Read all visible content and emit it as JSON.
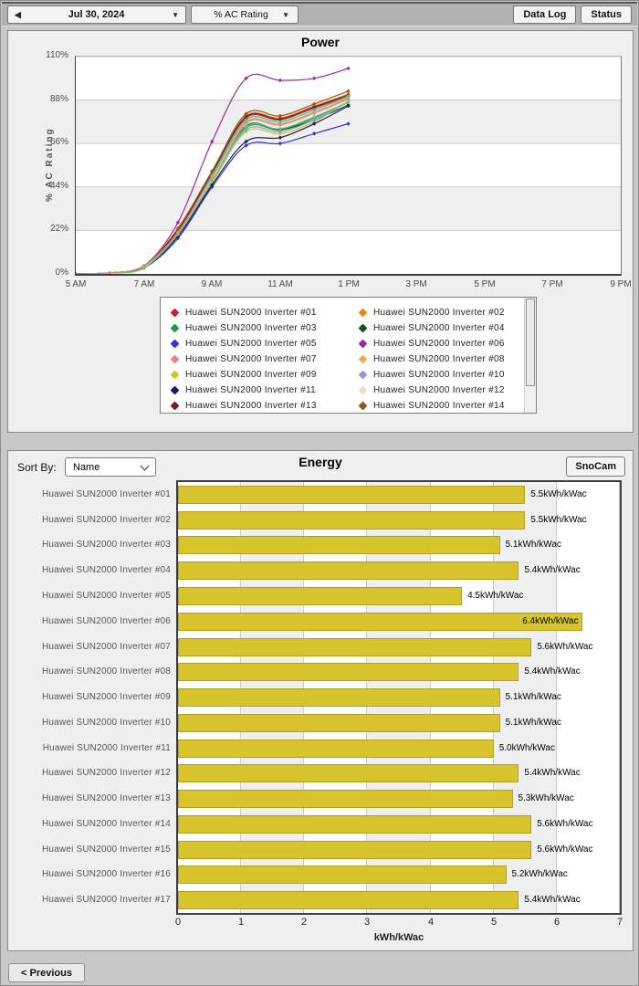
{
  "toolbar": {
    "prev_icon": "◀",
    "date_label": "Jul 30, 2024",
    "metric_label": "% AC Rating",
    "data_log_label": "Data Log",
    "status_label": "Status"
  },
  "energy_header": {
    "sort_by_label": "Sort By:",
    "sort_value": "Name",
    "snocam_label": "SnoCam"
  },
  "footer": {
    "previous_label": "< Previous"
  },
  "colors": {
    "bar_fill": "#d8c52e",
    "bar_border": "#b1a122",
    "stripe": "#efefef",
    "grid": "#cccccc",
    "panel_bg": "#efeff0"
  },
  "chart_data": [
    {
      "type": "line",
      "title": "Power",
      "ylabel": "% AC Rating",
      "ylim": [
        0,
        110
      ],
      "y_ticks": [
        0,
        22,
        44,
        66,
        88,
        110
      ],
      "y_tick_labels": [
        "0%",
        "22%",
        "44%",
        "66%",
        "88%",
        "110%"
      ],
      "x_axis_range_hours": [
        5,
        21
      ],
      "x_tick_hours": [
        5,
        7,
        9,
        11,
        13,
        15,
        17,
        19,
        21
      ],
      "x_tick_labels": [
        "5 AM",
        "7 AM",
        "9 AM",
        "11 AM",
        "1 PM",
        "3 PM",
        "5 PM",
        "7 PM",
        "9 PM"
      ],
      "data_hours": [
        5,
        6,
        7,
        8,
        9,
        10,
        11,
        12,
        13
      ],
      "legend_visible_count": 14,
      "series": [
        {
          "name": "Huawei SUN2000 Inverter #01",
          "color": "#cc2230",
          "values": [
            0,
            0.5,
            4,
            22,
            51,
            79,
            78,
            84,
            90
          ]
        },
        {
          "name": "Huawei SUN2000 Inverter #02",
          "color": "#ee8811",
          "values": [
            0,
            0.5,
            4,
            22,
            52,
            80,
            79,
            85,
            91
          ]
        },
        {
          "name": "Huawei SUN2000 Inverter #03",
          "color": "#1d9a50",
          "values": [
            0,
            0.5,
            3,
            20,
            47,
            74,
            73,
            79,
            87
          ]
        },
        {
          "name": "Huawei SUN2000 Inverter #04",
          "color": "#15521a",
          "values": [
            0,
            0.5,
            3,
            20,
            48,
            75,
            73,
            78,
            85.5
          ]
        },
        {
          "name": "Huawei SUN2000 Inverter #05",
          "color": "#2a35e0",
          "values": [
            0,
            0.5,
            3,
            18,
            44,
            65,
            66,
            71,
            76
          ]
        },
        {
          "name": "Huawei SUN2000 Inverter #06",
          "color": "#a226a2",
          "values": [
            0,
            0.5,
            4,
            26,
            67,
            99,
            98,
            99,
            104
          ]
        },
        {
          "name": "Huawei SUN2000 Inverter #07",
          "color": "#ef7f95",
          "values": [
            0,
            0.5,
            4,
            21,
            50,
            78,
            77,
            83,
            89.5
          ]
        },
        {
          "name": "Huawei SUN2000 Inverter #08",
          "color": "#f0ab57",
          "values": [
            0,
            0.5,
            4,
            21,
            49,
            77,
            76,
            82,
            89
          ]
        },
        {
          "name": "Huawei SUN2000 Inverter #09",
          "color": "#c9c920",
          "values": [
            0,
            0.5,
            3,
            20,
            46,
            72,
            71,
            77,
            87.5
          ]
        },
        {
          "name": "Huawei SUN2000 Inverter #10",
          "color": "#8c96ea",
          "values": [
            0,
            0.5,
            3,
            20,
            47,
            73,
            72,
            78,
            87
          ]
        },
        {
          "name": "Huawei SUN2000 Inverter #11",
          "color": "#1a1a70",
          "values": [
            0,
            0.5,
            3,
            19,
            45,
            67,
            69,
            76,
            85
          ]
        },
        {
          "name": "Huawei SUN2000 Inverter #12",
          "color": "#f6d9c4",
          "values": [
            0,
            0.5,
            4,
            21,
            48,
            76,
            75,
            81,
            88
          ]
        },
        {
          "name": "Huawei SUN2000 Inverter #13",
          "color": "#8e1515",
          "values": [
            0,
            0.5,
            4,
            22,
            51,
            79.5,
            78.5,
            84.5,
            90.5
          ]
        },
        {
          "name": "Huawei SUN2000 Inverter #14",
          "color": "#8e5a18",
          "values": [
            0,
            0.5,
            4,
            23,
            52,
            81,
            80,
            86,
            92.5
          ]
        },
        {
          "name": "Huawei SUN2000 Inverter #15",
          "color": "#2ac4c4",
          "values": [
            0,
            0.5,
            4,
            21,
            50,
            78,
            77,
            83,
            90
          ]
        },
        {
          "name": "Huawei SUN2000 Inverter #16",
          "color": "#63c96a",
          "values": [
            0,
            0.5,
            3,
            20,
            47,
            74.5,
            73.5,
            79.5,
            87
          ]
        },
        {
          "name": "Huawei SUN2000 Inverter #17",
          "color": "#df8a70",
          "values": [
            0,
            0.5,
            4,
            21,
            49,
            76.5,
            75.5,
            81.5,
            88.5
          ]
        }
      ]
    },
    {
      "type": "bar",
      "title": "Energy",
      "xlabel": "kWh/kWac",
      "xlim": [
        0,
        7
      ],
      "x_ticks": [
        0,
        1,
        2,
        3,
        4,
        5,
        6,
        7
      ],
      "x_tick_labels": [
        "0",
        "1",
        "2",
        "3",
        "4",
        "5",
        "6",
        "7"
      ],
      "categories": [
        "Huawei SUN2000 Inverter #01",
        "Huawei SUN2000 Inverter #02",
        "Huawei SUN2000 Inverter #03",
        "Huawei SUN2000 Inverter #04",
        "Huawei SUN2000 Inverter #05",
        "Huawei SUN2000 Inverter #06",
        "Huawei SUN2000 Inverter #07",
        "Huawei SUN2000 Inverter #08",
        "Huawei SUN2000 Inverter #09",
        "Huawei SUN2000 Inverter #10",
        "Huawei SUN2000 Inverter #11",
        "Huawei SUN2000 Inverter #12",
        "Huawei SUN2000 Inverter #13",
        "Huawei SUN2000 Inverter #14",
        "Huawei SUN2000 Inverter #15",
        "Huawei SUN2000 Inverter #16",
        "Huawei SUN2000 Inverter #17"
      ],
      "values": [
        5.5,
        5.5,
        5.1,
        5.4,
        4.5,
        6.4,
        5.6,
        5.4,
        5.1,
        5.1,
        5.0,
        5.4,
        5.3,
        5.6,
        5.6,
        5.2,
        5.4
      ],
      "value_labels": [
        "5.5kWh/kWac",
        "5.5kWh/kWac",
        "5.1kWh/kWac",
        "5.4kWh/kWac",
        "4.5kWh/kWac",
        "6.4kWh/kWac",
        "5.6kWh/kWac",
        "5.4kWh/kWac",
        "5.1kWh/kWac",
        "5.1kWh/kWac",
        "5.0kWh/kWac",
        "5.4kWh/kWac",
        "5.3kWh/kWac",
        "5.6kWh/kWac",
        "5.6kWh/kWac",
        "5.2kWh/kWac",
        "5.4kWh/kWac"
      ]
    }
  ]
}
